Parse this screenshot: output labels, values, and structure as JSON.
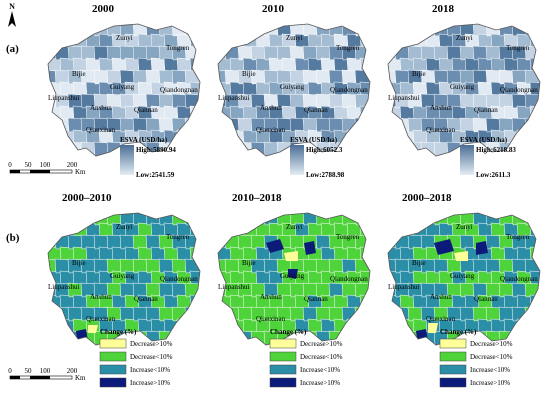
{
  "north_label": "N",
  "panel_a_label": "(a)",
  "panel_b_label": "(b)",
  "scalebar": {
    "ticks": [
      "0",
      "50",
      "100",
      "200"
    ],
    "unit": "Km"
  },
  "cities": {
    "zunyi": "Zunyi",
    "tongren": "Tongren",
    "bijie": "Bijie",
    "guiyang": "Guiyang",
    "qiandongnan": "Qiandongnan",
    "liupanshui": "Liupanshui",
    "anshun": "Anshun",
    "qiannan": "Qiannan",
    "qianxinan": "Qianxinan"
  },
  "esva_maps": [
    {
      "year": "2000",
      "legend_title": "ESVA (USD/ha)",
      "high": "High:5890.94",
      "low": "Low:2541.59"
    },
    {
      "year": "2010",
      "legend_title": "ESVA (USD/ha)",
      "high": "High:6052.3",
      "low": "Low:2788.98"
    },
    {
      "year": "2018",
      "legend_title": "ESVA (USD/ha)",
      "high": "High:6218.83",
      "low": "Low:2611.3"
    }
  ],
  "change_maps": [
    {
      "period": "2000–2010"
    },
    {
      "period": "2010–2018"
    },
    {
      "period": "2000–2018"
    }
  ],
  "change_legend": {
    "title": "Change (%)",
    "items": [
      {
        "label": "Decrease>10%",
        "color": "#ffff99"
      },
      {
        "label": "Decrease<10%",
        "color": "#4fd33a"
      },
      {
        "label": "Increase<10%",
        "color": "#2a8fa6"
      },
      {
        "label": "Increase>10%",
        "color": "#0c1a7a"
      }
    ]
  },
  "colors": {
    "esva_light": "#d5e1ec",
    "esva_mid": "#9fb7cd",
    "esva_dark": "#5b7fa3",
    "boundary": "#ffffff",
    "outline": "#555555"
  }
}
